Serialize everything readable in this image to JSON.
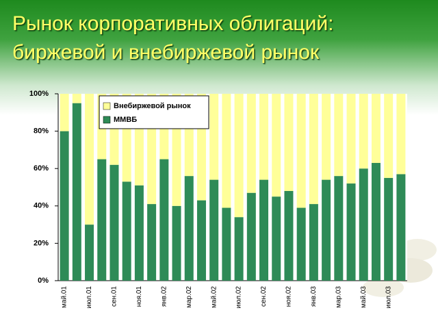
{
  "chart_data": {
    "type": "stacked_bar",
    "title": [
      "Рынок корпоративных облигаций:",
      "биржевой и внебиржевой рынок"
    ],
    "categories": [
      "май.01",
      null,
      "июл.01",
      null,
      "сен.01",
      null,
      "ноя.01",
      null,
      "янв.02",
      null,
      "мар.02",
      null,
      "май.02",
      null,
      "июл.02",
      null,
      "сен.02",
      null,
      "ноя.02",
      null,
      "янв.03",
      null,
      "мар.03",
      null,
      "май.03",
      null,
      "июл.03",
      null
    ],
    "series": [
      {
        "name": "ММВБ",
        "color": "#2e8b57",
        "values": [
          80,
          95,
          30,
          65,
          62,
          53,
          51,
          41,
          65,
          40,
          56,
          43,
          54,
          39,
          34,
          47,
          54,
          45,
          48,
          39,
          41,
          54,
          56,
          52,
          60,
          63,
          55,
          57
        ]
      },
      {
        "name": "Внебиржевой рынок",
        "color": "#ffff99",
        "values": [
          20,
          5,
          70,
          35,
          38,
          47,
          49,
          59,
          35,
          60,
          44,
          57,
          46,
          61,
          66,
          53,
          46,
          55,
          52,
          61,
          59,
          46,
          44,
          48,
          40,
          37,
          45,
          43
        ]
      }
    ],
    "ylim": [
      0,
      100
    ],
    "yticks": [
      {
        "value": 0,
        "label": "0%"
      },
      {
        "value": 20,
        "label": "20%"
      },
      {
        "value": 40,
        "label": "40%"
      },
      {
        "value": 60,
        "label": "60%"
      },
      {
        "value": 80,
        "label": "80%"
      },
      {
        "value": 100,
        "label": "100%"
      }
    ],
    "grid": false
  }
}
